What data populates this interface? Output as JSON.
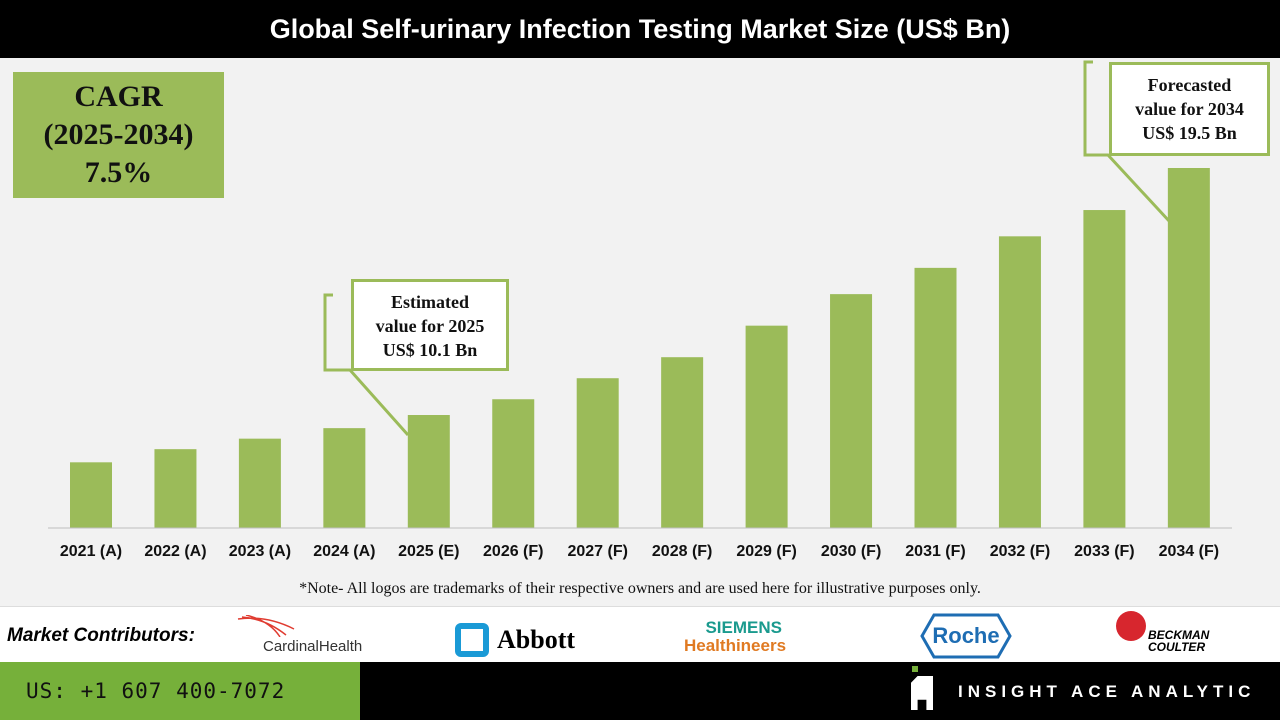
{
  "chart_data": {
    "type": "bar",
    "title": "Global Self-urinary Infection Testing Market Size (US$ Bn)",
    "categories": [
      "2021 (A)",
      "2022 (A)",
      "2023 (A)",
      "2024 (A)",
      "2025 (E)",
      "2026 (F)",
      "2027 (F)",
      "2028 (F)",
      "2029 (F)",
      "2030 (F)",
      "2031 (F)",
      "2032 (F)",
      "2033 (F)",
      "2034 (F)"
    ],
    "values": [
      8.3,
      8.8,
      9.2,
      9.6,
      10.1,
      10.7,
      11.5,
      12.3,
      13.5,
      14.7,
      15.7,
      16.9,
      17.9,
      19.5
    ],
    "ylim": [
      5.8,
      21
    ],
    "grid": false,
    "bar_color": "#9bbb59",
    "xlabel": "",
    "ylabel": ""
  },
  "cagr": {
    "line1": "CAGR",
    "line2": "(2025-2034)",
    "line3": "7.5%"
  },
  "callout_2025": {
    "line1": "Estimated",
    "line2": "value for 2025",
    "line3": "US$ 10.1 Bn"
  },
  "callout_2034": {
    "line1": "Forecasted",
    "line2": "value for 2034",
    "line3": "US$ 19.5 Bn"
  },
  "note": "*Note- All logos are trademarks of their respective owners and are used here for illustrative purposes only.",
  "contributors": {
    "label": "Market Contributors:",
    "logos": [
      "CardinalHealth",
      "Abbott",
      "SIEMENS Healthineers",
      "Roche",
      "BECKMAN COULTER"
    ]
  },
  "footer": {
    "phone": "US: +1 607 400-7072",
    "brand": "INSIGHT ACE ANALYTIC"
  }
}
